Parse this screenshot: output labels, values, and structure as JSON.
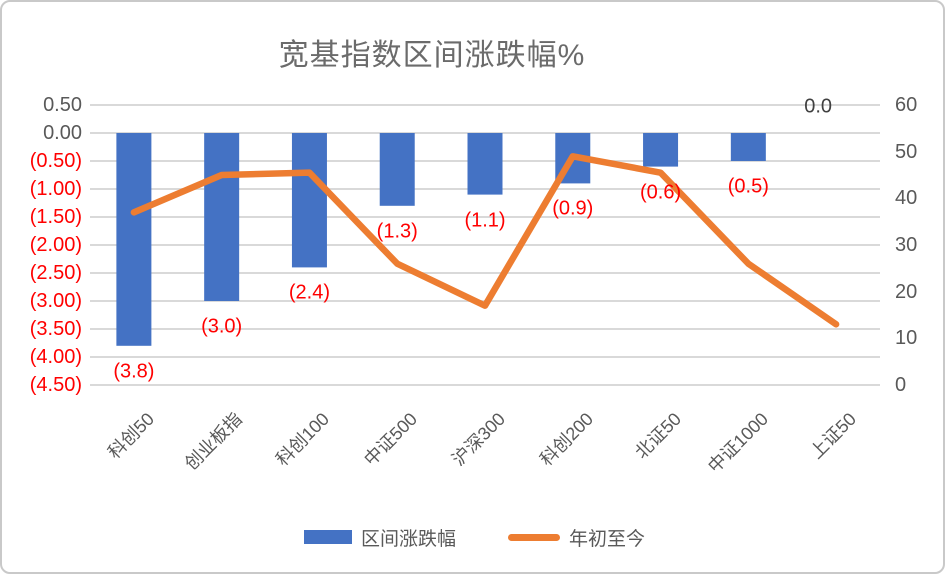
{
  "chart_data": {
    "type": "bar",
    "combo": "bar+line",
    "title": "宽基指数区间涨跌幅%",
    "categories": [
      "科创50",
      "创业板指",
      "科创100",
      "中证500",
      "沪深300",
      "科创200",
      "北证50",
      "中证1000",
      "上证50"
    ],
    "series": [
      {
        "name": "区间涨跌幅",
        "type": "bar",
        "axis": "left",
        "color": "#4472C4",
        "values": [
          -3.8,
          -3.0,
          -2.4,
          -1.3,
          -1.1,
          -0.9,
          -0.6,
          -0.5,
          0.0
        ],
        "data_labels": [
          "(3.8)",
          "(3.0)",
          "(2.4)",
          "(1.3)",
          "(1.1)",
          "(0.9)",
          "(0.6)",
          "(0.5)",
          "0.0"
        ],
        "negative_label_color": "#FF0000",
        "zero_label_color": "#404040"
      },
      {
        "name": "年初至今",
        "type": "line",
        "axis": "right",
        "color": "#ED7D31",
        "values": [
          37,
          45,
          45.5,
          26,
          17,
          49,
          45.5,
          26,
          13
        ]
      }
    ],
    "left_axis": {
      "min": -4.5,
      "max": 0.5,
      "step": 0.5,
      "ticks": [
        "0.50",
        "0.00",
        "(0.50)",
        "(1.00)",
        "(1.50)",
        "(2.00)",
        "(2.50)",
        "(3.00)",
        "(3.50)",
        "(4.00)",
        "(4.50)"
      ],
      "positive_color": "#595959",
      "negative_color": "#FF0000"
    },
    "right_axis": {
      "min": 0,
      "max": 60,
      "step": 10,
      "ticks": [
        "60",
        "50",
        "40",
        "30",
        "20",
        "10",
        "0"
      ],
      "color": "#595959"
    },
    "grid": true,
    "gridline_color": "#D9D9D9",
    "legend_position": "bottom",
    "legend": [
      {
        "label": "区间涨跌幅",
        "swatch": "bar"
      },
      {
        "label": "年初至今",
        "swatch": "line"
      }
    ]
  }
}
